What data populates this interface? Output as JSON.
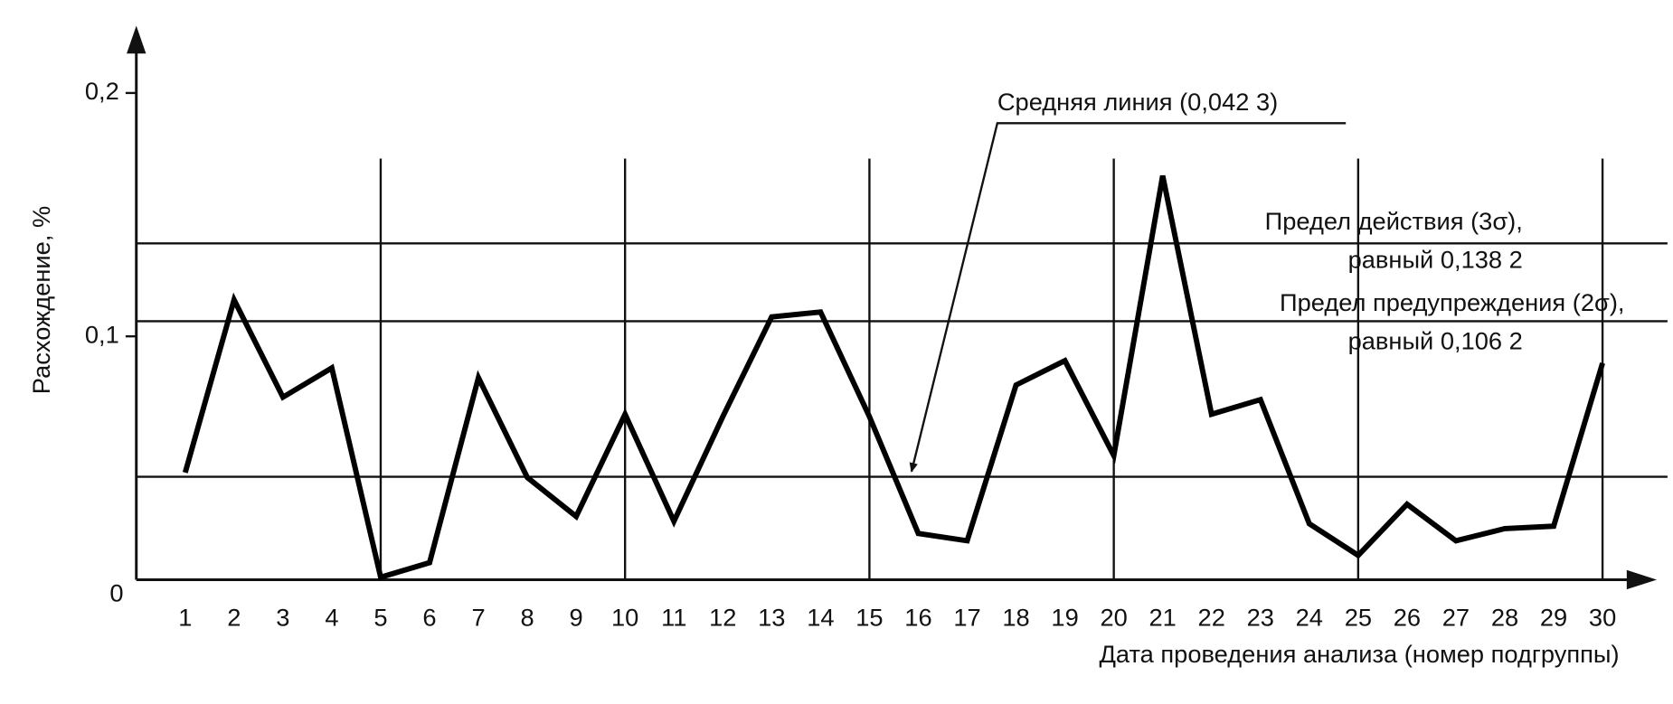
{
  "chart_data": {
    "type": "line",
    "x_label": "Дата проведения анализа (номер подгруппы)",
    "y_label": "Расхождение, %",
    "x": [
      1,
      2,
      3,
      4,
      5,
      6,
      7,
      8,
      9,
      10,
      11,
      12,
      13,
      14,
      15,
      16,
      17,
      18,
      19,
      20,
      21,
      22,
      23,
      24,
      25,
      26,
      27,
      28,
      29,
      30
    ],
    "series": [
      {
        "color": "#000000",
        "values": [
          0.044,
          0.115,
          0.075,
          0.087,
          0.001,
          0.007,
          0.083,
          0.042,
          0.026,
          0.068,
          0.024,
          0.067,
          0.108,
          0.11,
          0.067,
          0.019,
          0.016,
          0.08,
          0.09,
          0.051,
          0.166,
          0.068,
          0.074,
          0.023,
          0.01,
          0.031,
          0.016,
          0.021,
          0.022,
          0.089
        ]
      }
    ],
    "xlim": [
      0,
      31
    ],
    "xticks": [
      1,
      2,
      3,
      4,
      5,
      6,
      7,
      8,
      9,
      10,
      11,
      12,
      13,
      14,
      15,
      16,
      17,
      18,
      19,
      20,
      21,
      22,
      23,
      24,
      25,
      26,
      27,
      28,
      29,
      30
    ],
    "ylim": [
      0,
      0.225
    ],
    "yticks": [
      {
        "value": 0,
        "label": "0"
      },
      {
        "value": 0.1,
        "label": "0,1"
      },
      {
        "value": 0.2,
        "label": "0,2"
      }
    ],
    "vlines": [
      5,
      10,
      15,
      20,
      25,
      30
    ],
    "reference_lines": [
      {
        "value": 0.0423,
        "label": [
          "Средняя линия (0,042 3)"
        ]
      },
      {
        "value": 0.1382,
        "label": [
          "Предел действия (3σ),",
          "равный 0,138 2"
        ]
      },
      {
        "value": 0.1062,
        "label": [
          "Предел предупреждения (2σ),",
          "равный 0,106 2"
        ]
      }
    ]
  }
}
